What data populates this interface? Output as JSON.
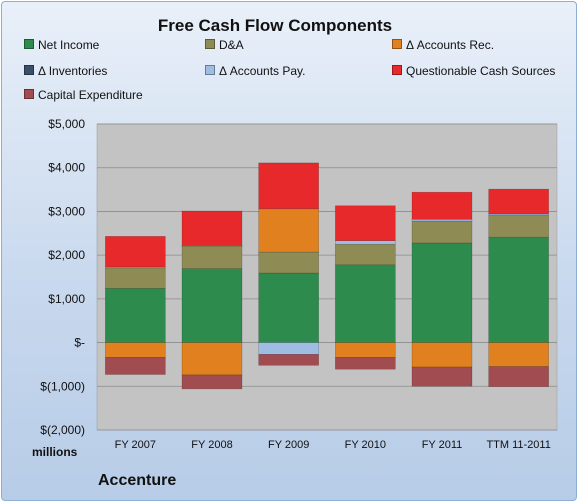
{
  "chart_data": {
    "type": "bar",
    "title": "Free Cash Flow Components",
    "units": "millions",
    "company": "Accenture",
    "categories": [
      "FY 2007",
      "FY 2008",
      "FY 2009",
      "FY 2010",
      "FY 2011",
      "TTM 11-2011"
    ],
    "yticks": [
      "$(2,000)",
      "$(1,000)",
      "$-",
      "$1,000",
      "$2,000",
      "$3,000",
      "$4,000",
      "$5,000"
    ],
    "ylim": [
      -2000,
      5000
    ],
    "grid": true,
    "legend_position": "top",
    "series": [
      {
        "name": "Net Income",
        "color": "#2e8b4e",
        "values": [
          1240,
          1690,
          1590,
          1780,
          2280,
          2410
        ]
      },
      {
        "name": "D&A",
        "color": "#8e8b55",
        "values": [
          470,
          520,
          480,
          470,
          500,
          500
        ]
      },
      {
        "name": "Δ Accounts Rec.",
        "color": "#e0801f",
        "values": [
          -340,
          -740,
          990,
          -340,
          -560,
          -550
        ]
      },
      {
        "name": "Δ Inventories",
        "color": "#3a4f6a",
        "values": [
          0,
          0,
          0,
          0,
          0,
          0
        ]
      },
      {
        "name": "Δ Accounts Pay.",
        "color": "#9fbde2",
        "values": [
          20,
          10,
          -270,
          80,
          40,
          30
        ]
      },
      {
        "name": "Questionable Cash Sources",
        "color": "#e8292b",
        "values": [
          700,
          790,
          1050,
          800,
          620,
          570
        ]
      },
      {
        "name": "Capital Expenditure",
        "color": "#a04c50",
        "values": [
          -390,
          -320,
          -250,
          -270,
          -440,
          -460
        ]
      }
    ]
  }
}
